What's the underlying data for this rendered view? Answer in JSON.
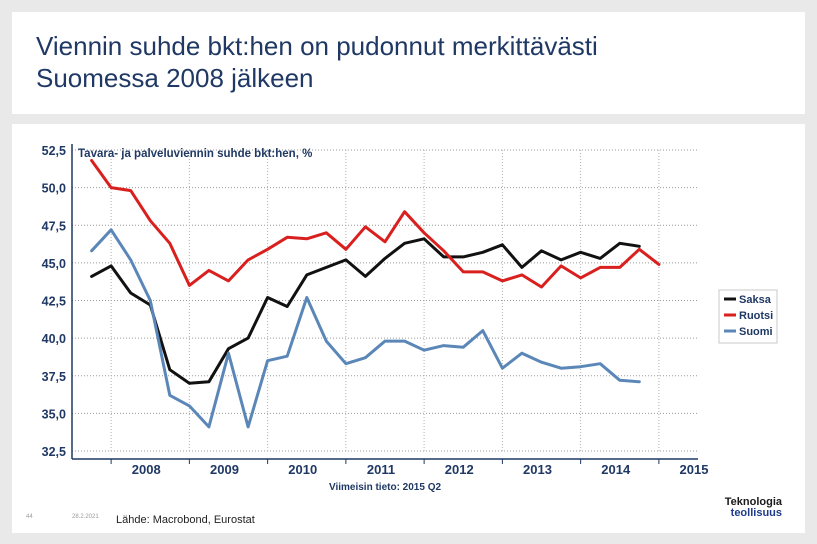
{
  "slide": {
    "title_line1": "Viennin suhde bkt:hen on pudonnut merkittävästi",
    "title_line2": "Suomessa 2008 jälkeen",
    "footer_page": "44",
    "footer_date": "28.2.2021",
    "source": "Lähde: Macrobond, Eurostat",
    "logo_line1": "Teknologia",
    "logo_line2": "teollisuus"
  },
  "chart_data": {
    "type": "line",
    "title": "Tavara- ja palveluviennin suhde bkt:hen, %",
    "note": "Viimeisin tieto: 2015 Q2",
    "ylim": [
      32.5,
      52.5
    ],
    "y_ticks": [
      52.5,
      50.0,
      47.5,
      45.0,
      42.5,
      40.0,
      37.5,
      35.0,
      32.5
    ],
    "y_tick_labels": [
      "52,5",
      "50,0",
      "47,5",
      "45,0",
      "42,5",
      "40,0",
      "37,5",
      "35,0",
      "32,5"
    ],
    "x_labels": [
      "2008",
      "2009",
      "2010",
      "2011",
      "2012",
      "2013",
      "2014",
      "2015"
    ],
    "x_start": 2007.5,
    "x_end": 2015.5,
    "x_year_start": 2008,
    "grid": true,
    "legend_position": "right",
    "colors": {
      "Saksa": "#111111",
      "Ruotsi": "#d9201e",
      "Suomi": "#5b87b8"
    },
    "series": [
      {
        "name": "Saksa",
        "start": 2007.75,
        "values": [
          44.1,
          44.8,
          43.0,
          42.2,
          37.9,
          37.0,
          37.1,
          39.3,
          40.0,
          42.7,
          42.1,
          44.2,
          44.7,
          45.2,
          44.1,
          45.3,
          46.3,
          46.6,
          45.4,
          45.4,
          45.7,
          46.2,
          44.7,
          45.8,
          45.2,
          45.7,
          45.3,
          46.3,
          46.1
        ]
      },
      {
        "name": "Ruotsi",
        "start": 2007.75,
        "values": [
          51.8,
          50.0,
          49.8,
          47.8,
          46.3,
          43.5,
          44.5,
          43.8,
          45.2,
          45.9,
          46.7,
          46.6,
          47.0,
          45.9,
          47.4,
          46.4,
          48.4,
          47.0,
          45.8,
          44.4,
          44.4,
          43.8,
          44.2,
          43.4,
          44.8,
          44.0,
          44.7,
          44.7,
          45.9,
          44.9
        ]
      },
      {
        "name": "Suomi",
        "start": 2007.75,
        "values": [
          45.8,
          47.2,
          45.2,
          42.5,
          36.2,
          35.5,
          34.1,
          39.0,
          34.1,
          38.5,
          38.8,
          42.7,
          39.8,
          38.3,
          38.7,
          39.8,
          39.8,
          39.2,
          39.5,
          39.4,
          40.5,
          38.0,
          39.0,
          38.4,
          38.0,
          38.1,
          38.3,
          37.2,
          37.1
        ]
      }
    ]
  }
}
